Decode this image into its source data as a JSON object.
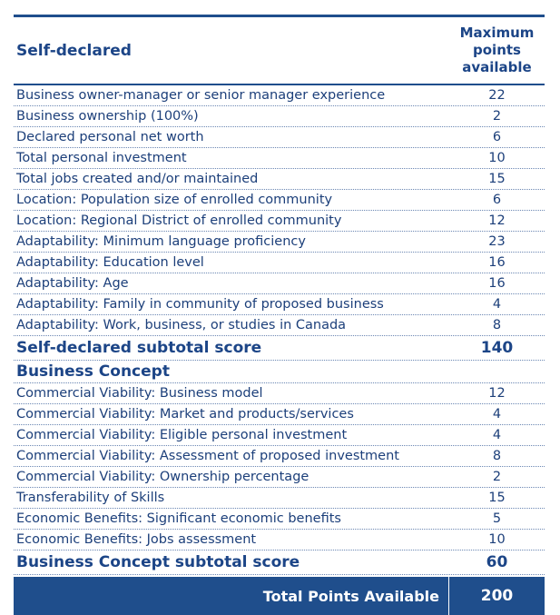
{
  "header": {
    "section_label": "Self-declared",
    "column_label": "Maximum points available"
  },
  "self_declared": {
    "rows": [
      {
        "label": "Business owner-manager or senior manager experience",
        "points": "22"
      },
      {
        "label": "Business ownership (100%)",
        "points": "2"
      },
      {
        "label": "Declared personal net worth",
        "points": "6"
      },
      {
        "label": "Total personal investment",
        "points": "10"
      },
      {
        "label": "Total jobs created and/or maintained",
        "points": "15"
      },
      {
        "label": "Location: Population size of enrolled community",
        "points": "6"
      },
      {
        "label": "Location: Regional District of enrolled community",
        "points": "12"
      },
      {
        "label": "Adaptability: Minimum language proficiency",
        "points": "23"
      },
      {
        "label": "Adaptability: Education level",
        "points": "16"
      },
      {
        "label": "Adaptability: Age",
        "points": "16"
      },
      {
        "label": "Adaptability: Family in community of proposed business",
        "points": "4"
      },
      {
        "label": "Adaptability: Work, business, or studies in Canada",
        "points": "8"
      }
    ],
    "subtotal_label": "Self-declared subtotal score",
    "subtotal_value": "140"
  },
  "business_concept": {
    "heading": "Business Concept",
    "rows": [
      {
        "label": "Commercial Viability: Business model",
        "points": "12"
      },
      {
        "label": "Commercial Viability: Market and products/services",
        "points": "4"
      },
      {
        "label": "Commercial Viability: Eligible personal investment",
        "points": "4"
      },
      {
        "label": "Commercial Viability: Assessment of proposed investment",
        "points": "8"
      },
      {
        "label": "Commercial Viability: Ownership percentage",
        "points": "2"
      },
      {
        "label": "Transferability of Skills",
        "points": "15"
      },
      {
        "label": "Economic Benefits: Significant economic benefits",
        "points": "5"
      },
      {
        "label": "Economic Benefits: Jobs assessment",
        "points": "10"
      }
    ],
    "subtotal_label": "Business Concept subtotal score",
    "subtotal_value": "60"
  },
  "total": {
    "label": "Total Points Available",
    "value": "200"
  },
  "colors": {
    "primary": "#1f4e8c",
    "text": "#1c3f7a"
  }
}
